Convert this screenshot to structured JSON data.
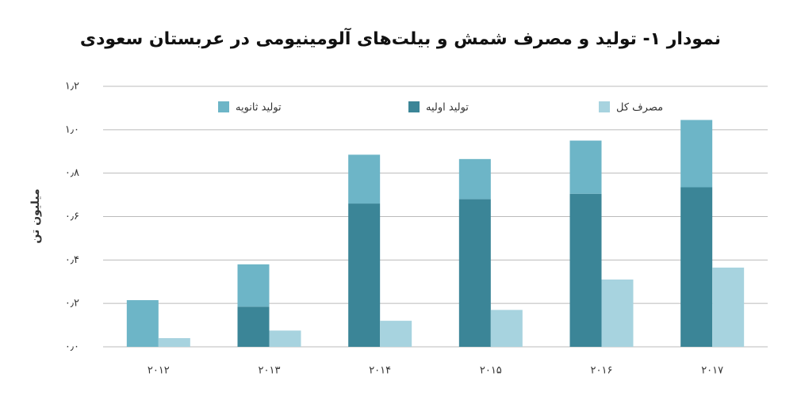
{
  "chart_data": {
    "type": "bar",
    "title": "نمودار ۱- تولید و مصرف شمش و بیلت‌های آلومینیومی در عربستان سعودی",
    "y_label": "میلیون تن",
    "categories": [
      "۲۰۱۲",
      "۲۰۱۳",
      "۲۰۱۴",
      "۲۰۱۵",
      "۲۰۱۶",
      "۲۰۱۷"
    ],
    "series": [
      {
        "name": "مصرف کل",
        "color": "#a7d3df",
        "stack_group": 1,
        "values": [
          0.04,
          0.075,
          0.12,
          0.17,
          0.31,
          0.365
        ]
      },
      {
        "name": "تولید اولیه",
        "color": "#3b8597",
        "stack_group": 0,
        "values": [
          0,
          0.185,
          0.66,
          0.68,
          0.705,
          0.735
        ]
      },
      {
        "name": "تولید ثانویه",
        "color": "#6db5c7",
        "stack_group": 0,
        "values": [
          0.215,
          0.195,
          0.225,
          0.185,
          0.245,
          0.31
        ]
      }
    ],
    "ylim": [
      0,
      1.2
    ],
    "yticks": [
      {
        "value": 0,
        "label": "۰٫۰"
      },
      {
        "value": 0.2,
        "label": "۰٫۲"
      },
      {
        "value": 0.4,
        "label": "۰٫۴"
      },
      {
        "value": 0.6,
        "label": "۰٫۶"
      },
      {
        "value": 0.8,
        "label": "۰٫۸"
      },
      {
        "value": 1.0,
        "label": "۱٫۰"
      },
      {
        "value": 1.2,
        "label": "۱٫۲"
      }
    ],
    "grid": true,
    "legend": "top"
  }
}
